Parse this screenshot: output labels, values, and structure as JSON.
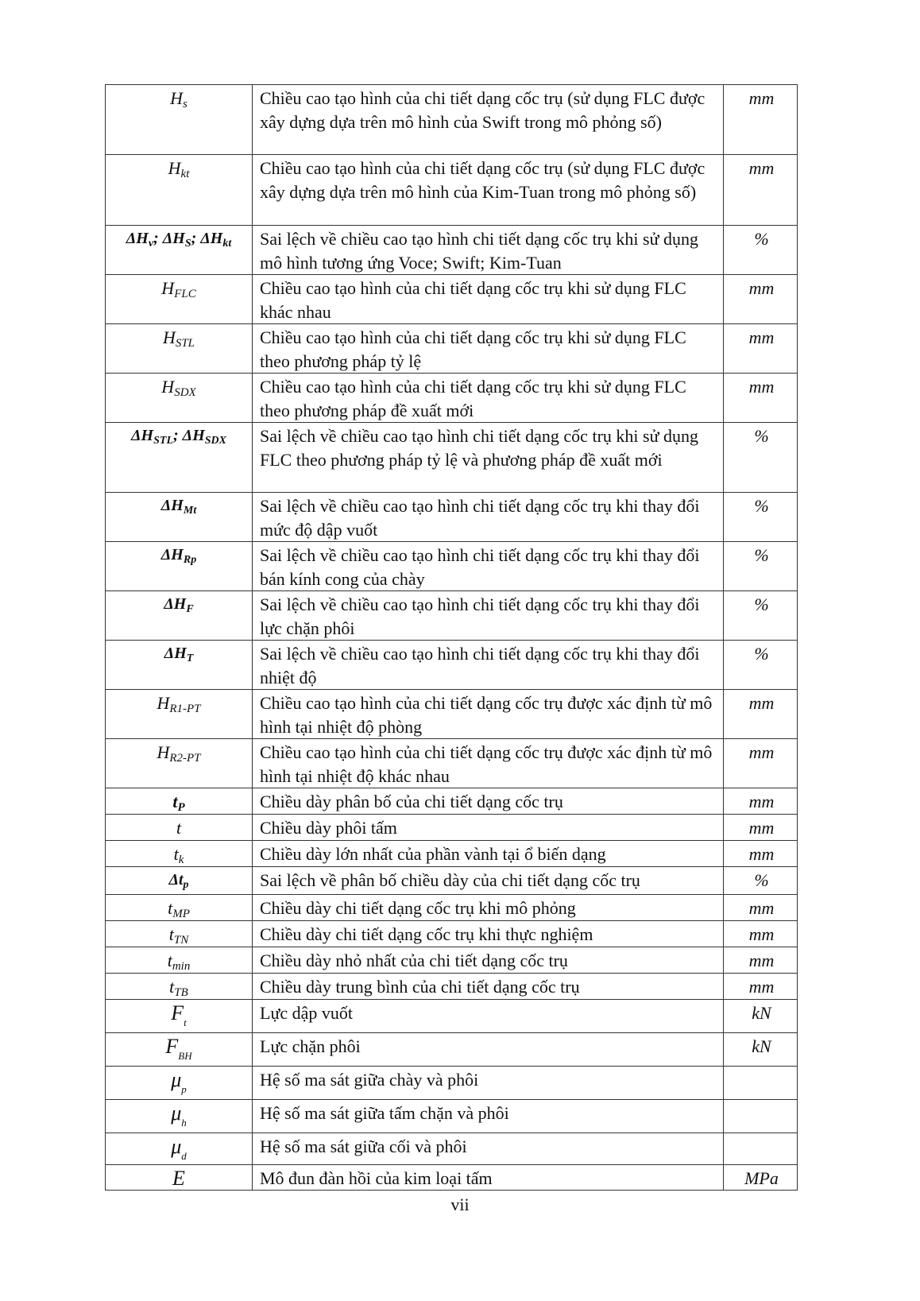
{
  "rows": [
    {
      "base": "H",
      "sub": "s",
      "style": "italic",
      "desc": "Chiều cao tạo hình của chi tiết dạng cốc trụ (sử dụng FLC được xây dựng dựa trên mô hình của Swift trong mô phỏng số)",
      "unit": "mm"
    },
    {
      "base": "H",
      "sub": "kt",
      "style": "italic",
      "desc": "Chiều cao tạo hình của chi tiết dạng cốc trụ (sử dụng FLC được xây dựng dựa trên mô hình của Kim-Tuan trong mô phỏng số)",
      "unit": "mm"
    },
    {
      "base": "ΔH",
      "sub": "v",
      "base2": "; ΔH",
      "sub2": "S",
      "base3": "; ΔH",
      "sub3": "kt",
      "style": "math",
      "desc": "Sai lệch về chiều cao tạo hình chi tiết dạng cốc trụ khi sử dụng mô hình tương ứng Voce; Swift; Kim-Tuan",
      "unit": "%"
    },
    {
      "base": "H",
      "sub": "FLC",
      "style": "italic",
      "desc": "Chiều cao tạo hình của chi tiết dạng cốc trụ khi sử dụng FLC khác nhau",
      "unit": "mm"
    },
    {
      "base": "H",
      "sub": "STL",
      "style": "italic",
      "desc": "Chiều cao tạo hình của chi tiết dạng cốc trụ khi sử dụng FLC theo phương pháp tỷ lệ",
      "unit": "mm"
    },
    {
      "base": "H",
      "sub": "SDX",
      "style": "italic",
      "desc": "Chiều cao tạo hình của chi tiết dạng cốc trụ khi sử dụng FLC theo phương pháp đề xuất mới",
      "unit": "mm"
    },
    {
      "base": "ΔH",
      "sub": "STL",
      "base2": "; ΔH",
      "sub2": "SDX",
      "style": "math",
      "desc": "Sai lệch về chiều cao tạo hình chi tiết dạng cốc trụ khi sử dụng FLC theo phương pháp tỷ lệ và phương pháp đề xuất mới",
      "unit": "%"
    },
    {
      "base": "ΔH",
      "sub": "Mt",
      "style": "math",
      "desc": "Sai lệch về chiều cao tạo hình chi tiết dạng cốc trụ khi thay đổi mức độ dập vuốt",
      "unit": "%"
    },
    {
      "base": "ΔH",
      "sub": "Rp",
      "style": "math",
      "desc": "Sai lệch về chiều cao tạo hình chi tiết dạng cốc trụ khi thay đổi bán kính cong của chày",
      "unit": "%"
    },
    {
      "base": "ΔH",
      "sub": "F",
      "style": "math",
      "desc": "Sai lệch về chiều cao tạo hình chi tiết dạng cốc trụ khi thay đổi lực chặn phôi",
      "unit": "%"
    },
    {
      "base": "ΔH",
      "sub": "T",
      "style": "math",
      "desc": "Sai lệch về chiều cao tạo hình chi tiết dạng cốc trụ khi thay đổi nhiệt độ",
      "unit": "%"
    },
    {
      "base": "H",
      "sub": "R1-PT",
      "style": "italic",
      "desc": "Chiều cao tạo hình của chi tiết dạng cốc trụ được xác định từ mô hình tại nhiệt độ phòng",
      "unit": "mm"
    },
    {
      "base": "H",
      "sub": "R2-PT",
      "style": "italic",
      "desc": "Chiều cao tạo hình của chi tiết dạng cốc trụ được xác định từ mô hình tại nhiệt độ khác nhau",
      "unit": "mm"
    },
    {
      "base": "t",
      "sub": "P",
      "style": "bold",
      "desc": "Chiều dày phân bố của chi tiết dạng cốc trụ",
      "unit": "mm"
    },
    {
      "base": "t",
      "sub": "",
      "style": "italic",
      "desc": "Chiều dày phôi tấm",
      "unit": "mm"
    },
    {
      "base": "t",
      "sub": "k",
      "style": "italic",
      "desc": "Chiều dày lớn nhất của phần vành tại ổ biến dạng",
      "unit": "mm"
    },
    {
      "base": "Δt",
      "sub": "p",
      "style": "math",
      "desc": "Sai lệch về phân bố chiều dày của chi tiết dạng cốc trụ",
      "unit": "%"
    },
    {
      "base": "t",
      "sub": "MP",
      "style": "italic",
      "desc": "Chiều dày chi tiết dạng cốc trụ khi mô phỏng",
      "unit": "mm"
    },
    {
      "base": "t",
      "sub": "TN",
      "style": "italic",
      "desc": "Chiều dày chi tiết dạng cốc trụ khi thực nghiệm",
      "unit": "mm"
    },
    {
      "base": "t",
      "sub": "min",
      "style": "italic",
      "desc": "Chiều dày nhỏ nhất của chi tiết dạng cốc trụ",
      "unit": "mm"
    },
    {
      "base": "t",
      "sub": "TB",
      "style": "italic",
      "desc": "Chiều dày trung bình của chi tiết dạng cốc trụ",
      "unit": "mm"
    },
    {
      "base": "F",
      "sub": "t",
      "style": "big",
      "desc": "Lực dập vuốt",
      "unit": "kN"
    },
    {
      "base": "F",
      "sub": "BH",
      "style": "big",
      "desc": "Lực chặn phôi",
      "unit": "kN"
    },
    {
      "base": "μ",
      "sub": "p",
      "style": "big",
      "desc": "Hệ số ma sát giữa chày và phôi",
      "unit": ""
    },
    {
      "base": "μ",
      "sub": "h",
      "style": "big",
      "desc": "Hệ số ma sát giữa tấm chặn và phôi",
      "unit": ""
    },
    {
      "base": "μ",
      "sub": "d",
      "style": "big",
      "desc": "Hệ số ma sát giữa cối và phôi",
      "unit": ""
    },
    {
      "base": "E",
      "sub": "",
      "style": "big",
      "desc": "Mô đun đàn hồi của kim loại tấm",
      "unit": "MPa"
    }
  ],
  "page_number": "vii"
}
